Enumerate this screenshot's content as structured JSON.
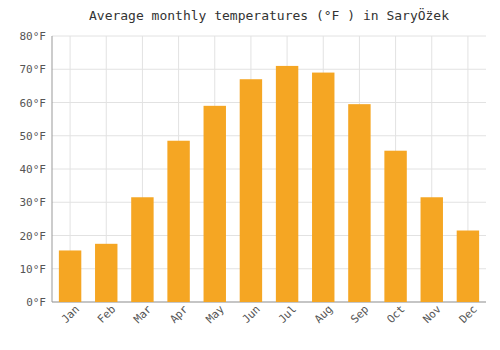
{
  "chart_data": {
    "type": "bar",
    "title": "Average monthly temperatures (°F ) in SaryÖ̈zek",
    "categories": [
      "Jan",
      "Feb",
      "Mar",
      "Apr",
      "May",
      "Jun",
      "Jul",
      "Aug",
      "Sep",
      "Oct",
      "Nov",
      "Dec"
    ],
    "values": [
      15.5,
      17.5,
      31.5,
      48.5,
      59.0,
      67.0,
      71.0,
      69.0,
      59.5,
      45.5,
      31.5,
      21.5
    ],
    "color": "#F5A623",
    "ylim": [
      0,
      80
    ],
    "yticks": [
      {
        "value": 0,
        "label": "0°F"
      },
      {
        "value": 10,
        "label": "10°F"
      },
      {
        "value": 20,
        "label": "20°F"
      },
      {
        "value": 30,
        "label": "30°F"
      },
      {
        "value": 40,
        "label": "40°F"
      },
      {
        "value": 50,
        "label": "50°F"
      },
      {
        "value": 60,
        "label": "60°F"
      },
      {
        "value": 70,
        "label": "70°F"
      },
      {
        "value": 80,
        "label": "80°F"
      }
    ],
    "grid": true
  }
}
